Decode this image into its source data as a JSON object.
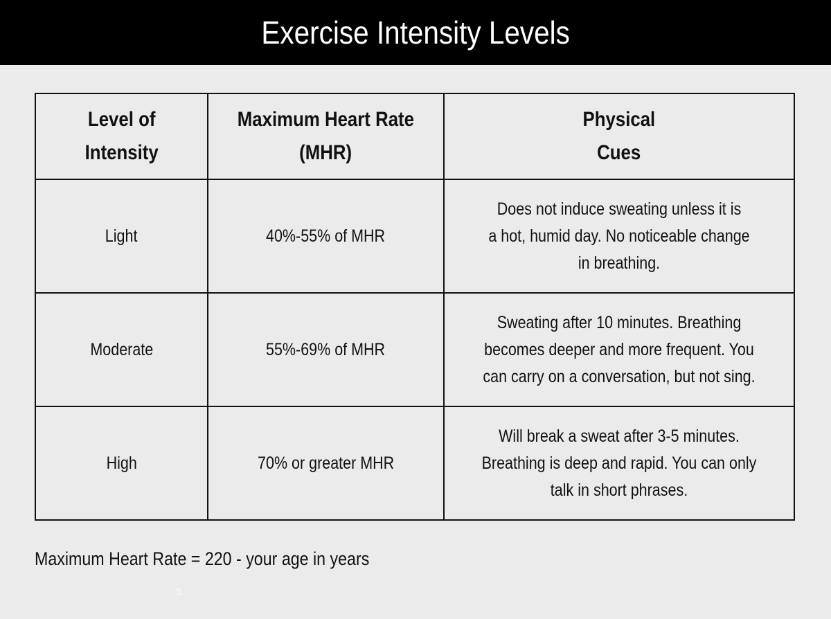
{
  "title": "Exercise Intensity Levels",
  "table": {
    "headers": [
      [
        "Level of",
        "Intensity"
      ],
      [
        "Maximum Heart Rate",
        "(MHR)"
      ],
      [
        "Physical",
        "Cues"
      ]
    ],
    "rows": [
      {
        "level": "Light",
        "mhr": "40%-55% of MHR",
        "cues": [
          "Does not induce sweating unless it is",
          "a hot, humid day. No noticeable change",
          "in breathing."
        ]
      },
      {
        "level": "Moderate",
        "mhr": "55%-69% of MHR",
        "cues": [
          "Sweating after 10 minutes. Breathing",
          "becomes deeper and more frequent. You",
          "can carry on a conversation, but not sing."
        ]
      },
      {
        "level": "High",
        "mhr": "70% or greater MHR",
        "cues": [
          "Will break a sweat after 3-5 minutes.",
          "Breathing is deep and rapid. You can only",
          "talk in short phrases."
        ]
      }
    ]
  },
  "footnote": "Maximum Heart Rate = 220 - your age in years",
  "page_number": "5",
  "colors": {
    "background": "#ebebeb",
    "title_bar": "#000000",
    "title_text": "#ffffff",
    "text": "#111111",
    "border": "#111111"
  }
}
